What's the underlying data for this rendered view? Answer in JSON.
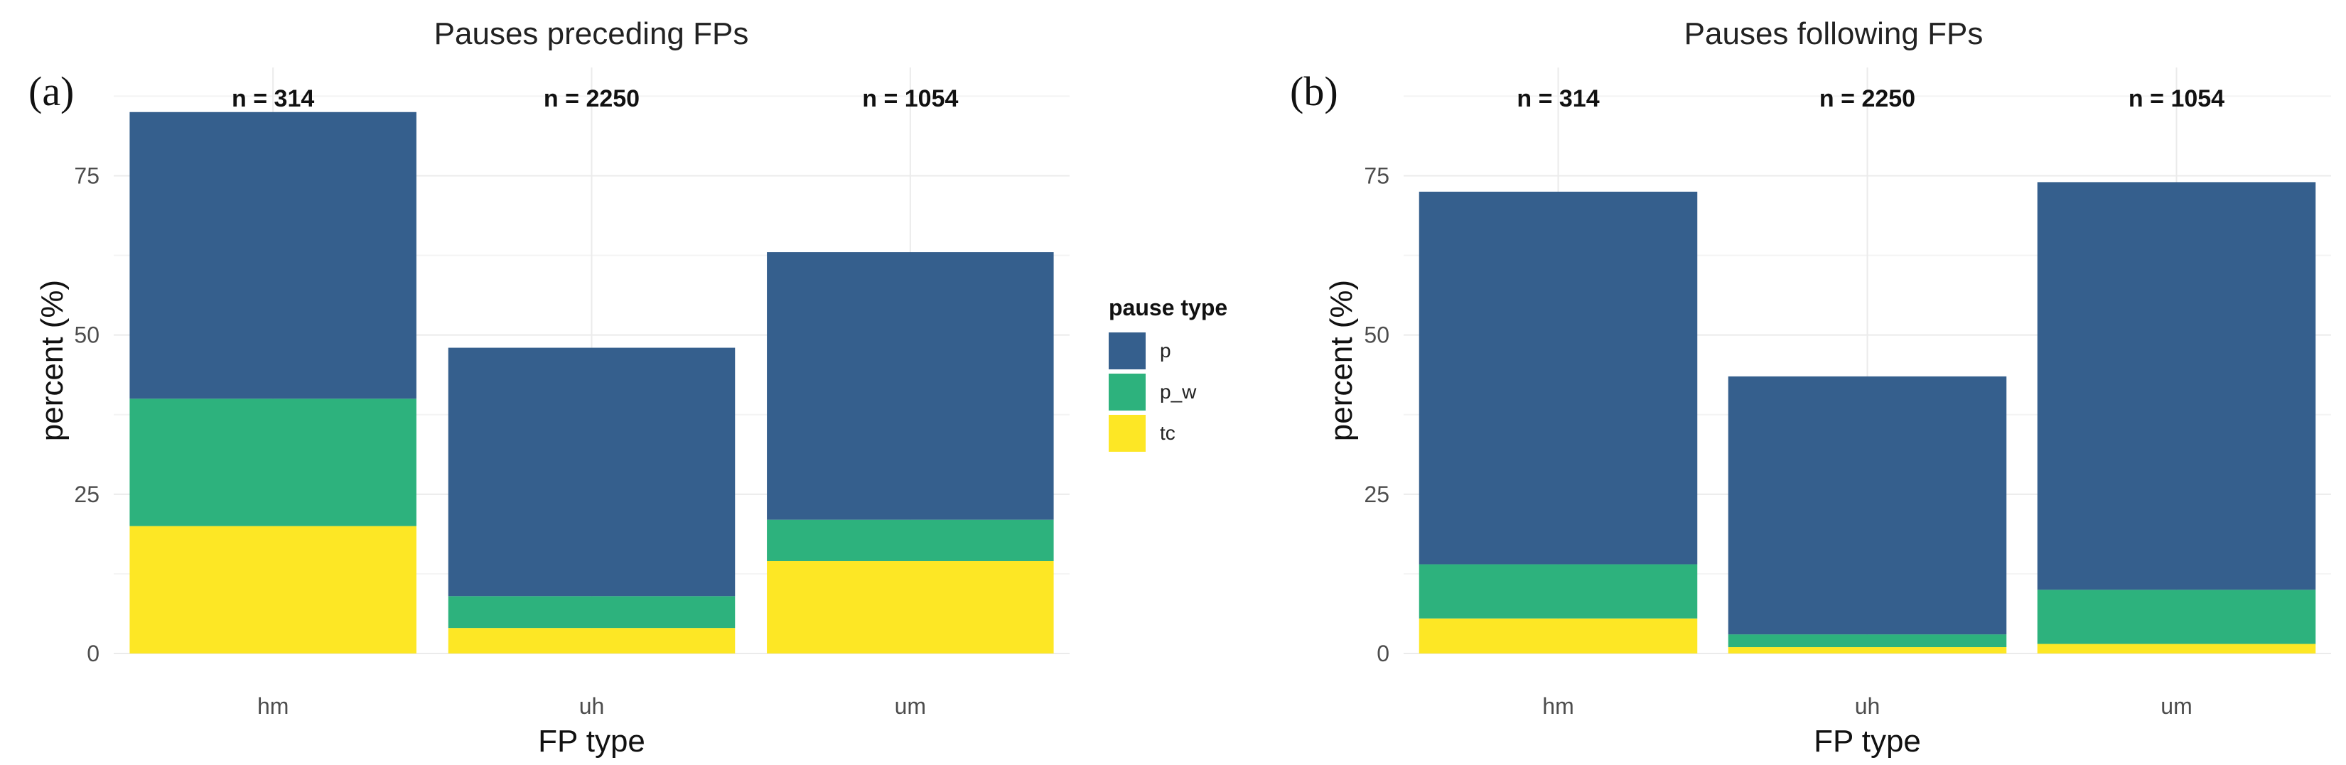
{
  "chart_data": [
    {
      "type": "bar",
      "stacked": true,
      "panel_label": "(a)",
      "title": "Pauses preceding FPs",
      "xlabel": "FP type",
      "ylabel": "percent (%)",
      "categories": [
        "hm",
        "uh",
        "um"
      ],
      "n_labels": [
        "n = 314",
        "n = 2250",
        "n = 1054"
      ],
      "ylim": [
        0,
        92
      ],
      "yticks": [
        0,
        25,
        50,
        75
      ],
      "series": [
        {
          "name": "tc",
          "color": "#FDE725",
          "values": [
            20,
            4,
            14.5
          ]
        },
        {
          "name": "p_w",
          "color": "#2DB27D",
          "values": [
            20,
            5,
            6.5
          ]
        },
        {
          "name": "p",
          "color": "#355F8D",
          "values": [
            45,
            39,
            42
          ]
        }
      ],
      "grid": true
    },
    {
      "type": "bar",
      "stacked": true,
      "panel_label": "(b)",
      "title": "Pauses following FPs",
      "xlabel": "FP type",
      "ylabel": "percent (%)",
      "categories": [
        "hm",
        "uh",
        "um"
      ],
      "n_labels": [
        "n = 314",
        "n = 2250",
        "n = 1054"
      ],
      "ylim": [
        0,
        92
      ],
      "yticks": [
        0,
        25,
        50,
        75
      ],
      "series": [
        {
          "name": "tc",
          "color": "#FDE725",
          "values": [
            5.5,
            1,
            1.5
          ]
        },
        {
          "name": "p_w",
          "color": "#2DB27D",
          "values": [
            8.5,
            2,
            8.5
          ]
        },
        {
          "name": "p",
          "color": "#355F8D",
          "values": [
            58.5,
            40.5,
            64
          ]
        }
      ],
      "grid": true
    }
  ],
  "legend": {
    "title": "pause type",
    "items": [
      {
        "label": "p",
        "color": "#355F8D"
      },
      {
        "label": "p_w",
        "color": "#2DB27D"
      },
      {
        "label": "tc",
        "color": "#FDE725"
      }
    ]
  },
  "colors": {
    "grid_major": "#ebebeb",
    "grid_minor": "#f4f4f4"
  }
}
